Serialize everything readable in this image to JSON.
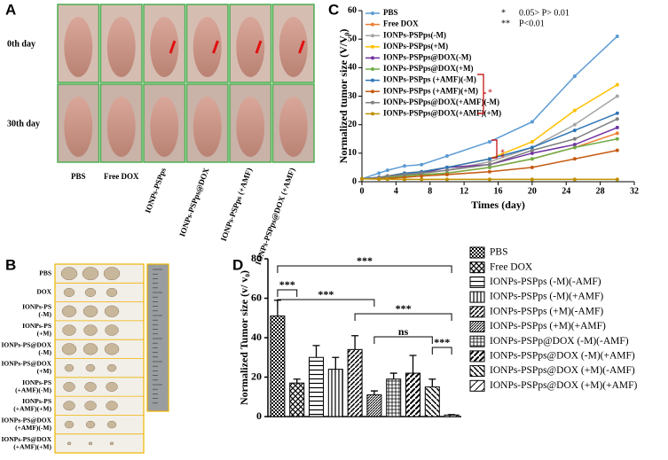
{
  "panel_labels": [
    "A",
    "B",
    "C",
    "D"
  ],
  "panel_a": {
    "row_labels": [
      "0th day",
      "30th day"
    ],
    "column_labels": [
      "PBS",
      "Free DOX",
      "IONPs-PSPps",
      "IONPs-PSPps@DOX",
      "IONPs-PSPps (+AMF)",
      "IONPs-PSPps@DOX (+AMF)"
    ]
  },
  "panel_b": {
    "row_labels": [
      [
        "PBS"
      ],
      [
        "DOX"
      ],
      [
        "IONPs-PS",
        "(-M)"
      ],
      [
        "IONPs-PS",
        "(+M)"
      ],
      [
        "IONPs-PS@DOX",
        "(-M)"
      ],
      [
        "IONPs-PS@DOX",
        "(+M)"
      ],
      [
        "IONPs-PS",
        "(+AMF)(-M)"
      ],
      [
        "IONPs-PS",
        "(+AMF)(+M)"
      ],
      [
        "IONPs-PS@DOX",
        "(+AMF)(-M)"
      ],
      [
        "IONPs-PS@DOX",
        "(+AMF)(+M)"
      ]
    ]
  },
  "chart_data": [
    {
      "type": "line",
      "x_label": "Times (day)",
      "y_label": "Normalized tumor size (V/V₀)",
      "xlim": [
        0,
        32
      ],
      "xticks": [
        0,
        4,
        8,
        12,
        16,
        20,
        24,
        28,
        32
      ],
      "ylim": [
        0,
        60
      ],
      "yticks": [
        0,
        10,
        20,
        30,
        40,
        50,
        60
      ],
      "annotations": [
        "*",
        "0.05> P> 0.01",
        "**",
        "P<0.01",
        "*",
        "**"
      ],
      "x": [
        0,
        2,
        3,
        5,
        7,
        10,
        15,
        20,
        25,
        30
      ],
      "series": [
        {
          "name": "PBS",
          "color": "#5b9bd5",
          "values": [
            1,
            3,
            4,
            5.5,
            6,
            9,
            14,
            21,
            37,
            51
          ]
        },
        {
          "name": "Free DOX",
          "color": "#ed7d31",
          "values": [
            1,
            1.2,
            1.5,
            2,
            2.5,
            3,
            5,
            8,
            12,
            17
          ]
        },
        {
          "name": "IONPs-PSPps(-M)",
          "color": "#a5a5a5",
          "values": [
            1,
            1.5,
            2,
            2.5,
            3,
            4,
            7,
            12,
            20,
            30
          ]
        },
        {
          "name": "IONPs-PSPps(+M)",
          "color": "#ffc000",
          "values": [
            1,
            1.5,
            2,
            3,
            3.5,
            5,
            8,
            14,
            25,
            34
          ]
        },
        {
          "name": "IONPs-PSPps@DOX(-M)",
          "color": "#7030a0",
          "values": [
            1,
            1.5,
            2,
            2.5,
            3,
            5,
            6,
            10,
            13,
            19
          ]
        },
        {
          "name": "IONPs-PSPps@DOX(+M)",
          "color": "#70ad47",
          "values": [
            1,
            1,
            1.5,
            2,
            2.5,
            3,
            5,
            8,
            12,
            15
          ]
        },
        {
          "name": "IONPs-PSPps (+AMF)(-M)",
          "color": "#2e75b6",
          "values": [
            1,
            1.5,
            2,
            3,
            3.5,
            5,
            8,
            12,
            18,
            24
          ]
        },
        {
          "name": "IONPs-PSPps (+AMF)(+M)",
          "color": "#c55a11",
          "values": [
            1,
            1,
            1.2,
            1.5,
            2,
            2.5,
            3.5,
            5,
            8,
            11
          ]
        },
        {
          "name": "IONPs-PSPps@DOX(+AMF)(-M)",
          "color": "#7f7f7f",
          "values": [
            1,
            1.5,
            2,
            2.5,
            3,
            4,
            6,
            11,
            15,
            22
          ]
        },
        {
          "name": "IONPs-PSPps@DOX(+AMF)(+M)",
          "color": "#bf9000",
          "values": [
            1,
            0.9,
            0.9,
            0.8,
            0.8,
            0.8,
            0.8,
            0.8,
            0.8,
            0.8
          ]
        }
      ]
    },
    {
      "type": "bar",
      "y_label": "Normalized Tumor size (v/ v₀)",
      "ylim": [
        0,
        80
      ],
      "yticks": [
        0,
        20,
        40,
        60,
        80
      ],
      "annotations": [
        "***",
        "***",
        "***",
        "***",
        "ns",
        "***"
      ],
      "categories": [
        "PBS",
        "Free DOX",
        "IONPs-PSPps (-M)(-AMF)",
        "IONPs-PSPps (-M)(+AMF)",
        "IONPs-PSPps (+M)(-AMF)",
        "IONPs-PSPps (+M)(+AMF)",
        "IONPs-PSPp@DOX (-M)(-AMF)",
        "IONPs-PSPps@DOX (-M)(+AMF)",
        "IONPs-PSPps@DOX (+M)(-AMF)",
        "IONPs-PSPps@DOX (+M)(+AMF)"
      ],
      "values": [
        51,
        17,
        30,
        24,
        34,
        11,
        19,
        22,
        15,
        0.8
      ],
      "errors": [
        8,
        2,
        6,
        6,
        7,
        2,
        3,
        9,
        4,
        0.2
      ],
      "patterns": [
        "p-check",
        "p-cross",
        "p-hline",
        "p-vline",
        "p-diag",
        "p-dense",
        "p-grid",
        "p-diag2",
        "p-back",
        "p-wide"
      ]
    }
  ]
}
